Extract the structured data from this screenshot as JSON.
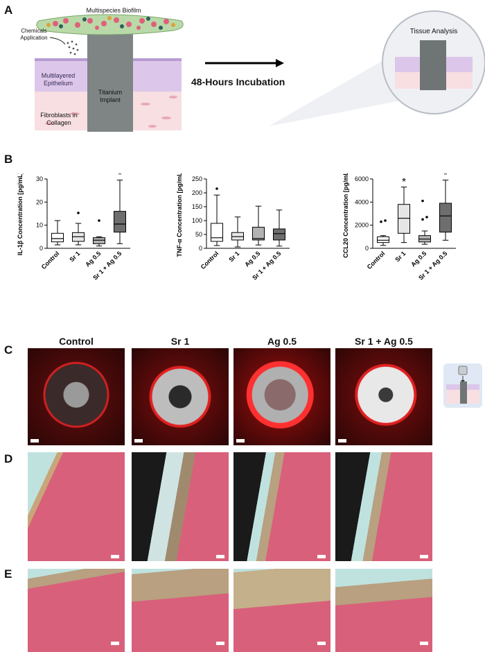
{
  "panels": {
    "a": "A",
    "b": "B",
    "c": "C",
    "d": "D",
    "e": "E"
  },
  "schematic": {
    "biofilm": "Multispecies Biofilm",
    "chemicals": "Chemicals Application",
    "epithelium": "Multilayered Epithelium",
    "fibroblasts": "Fibroblasts in Collagen",
    "implant": "Titanium Implant",
    "incubation": "48-Hours Incubation",
    "tissue_analysis": "Tissue Analysis"
  },
  "groups": [
    "Control",
    "Sr 1",
    "Ag 0.5",
    "Sr 1 + Ag 0.5"
  ],
  "significance_mark": "*",
  "chart_data": [
    {
      "type": "box",
      "ylabel": "IL-1β Concentration [pg/mL]",
      "ylim": [
        0,
        30
      ],
      "yticks": [
        0,
        10,
        20,
        30
      ],
      "categories": [
        "Control",
        "Sr 1",
        "Ag 0.5",
        "Sr 1 + Ag 0.5"
      ],
      "boxes": [
        {
          "min": 1.5,
          "q1": 2.8,
          "median": 4.2,
          "q3": 6.5,
          "max": 12,
          "outliers": [],
          "fill": "#ffffff",
          "sig": false
        },
        {
          "min": 1.5,
          "q1": 3.0,
          "median": 5.0,
          "q3": 6.8,
          "max": 10.8,
          "outliers": [
            15.3
          ],
          "fill": "#e6e6e6",
          "sig": false
        },
        {
          "min": 1.0,
          "q1": 2.0,
          "median": 3.5,
          "q3": 4.6,
          "max": 5.0,
          "outliers": [
            12
          ],
          "fill": "#b3b3b3",
          "sig": false
        },
        {
          "min": 2.0,
          "q1": 7.0,
          "median": 10.5,
          "q3": 16.0,
          "max": 29.5,
          "outliers": [],
          "fill": "#6e6e6e",
          "sig": true
        }
      ]
    },
    {
      "type": "box",
      "ylabel": "TNF-α Concentration [pg/mL]",
      "ylim": [
        0,
        250
      ],
      "yticks": [
        0,
        50,
        100,
        150,
        200,
        250
      ],
      "categories": [
        "Control",
        "Sr 1",
        "Ag 0.5",
        "Sr 1 + Ag 0.5"
      ],
      "boxes": [
        {
          "min": 10,
          "q1": 25,
          "median": 38,
          "q3": 90,
          "max": 192,
          "outliers": [
            215
          ],
          "fill": "#ffffff",
          "sig": false
        },
        {
          "min": 5,
          "q1": 30,
          "median": 42,
          "q3": 57,
          "max": 113,
          "outliers": [],
          "fill": "#e6e6e6",
          "sig": false
        },
        {
          "min": 12,
          "q1": 30,
          "median": 35,
          "q3": 76,
          "max": 152,
          "outliers": [],
          "fill": "#b3b3b3",
          "sig": false
        },
        {
          "min": 8,
          "q1": 30,
          "median": 53,
          "q3": 70,
          "max": 138,
          "outliers": [],
          "fill": "#6e6e6e",
          "sig": false
        }
      ]
    },
    {
      "type": "box",
      "ylabel": "CCL20 Concentration [pg/mL]",
      "ylim": [
        0,
        6000
      ],
      "yticks": [
        0,
        2000,
        4000,
        6000
      ],
      "categories": [
        "Control",
        "Sr 1",
        "Ag 0.5",
        "Sr 1 + Ag 0.5"
      ],
      "boxes": [
        {
          "min": 250,
          "q1": 500,
          "median": 700,
          "q3": 1000,
          "max": 1100,
          "outliers": [
            2300,
            2400
          ],
          "fill": "#ffffff",
          "sig": false
        },
        {
          "min": 500,
          "q1": 1300,
          "median": 2600,
          "q3": 3800,
          "max": 5300,
          "outliers": [],
          "fill": "#e6e6e6",
          "sig": true
        },
        {
          "min": 350,
          "q1": 550,
          "median": 800,
          "q3": 1100,
          "max": 1500,
          "outliers": [
            2500,
            2700,
            4100
          ],
          "fill": "#b3b3b3",
          "sig": false
        },
        {
          "min": 700,
          "q1": 1400,
          "median": 2800,
          "q3": 3900,
          "max": 5900,
          "outliers": [],
          "fill": "#6e6e6e",
          "sig": true
        }
      ]
    }
  ]
}
